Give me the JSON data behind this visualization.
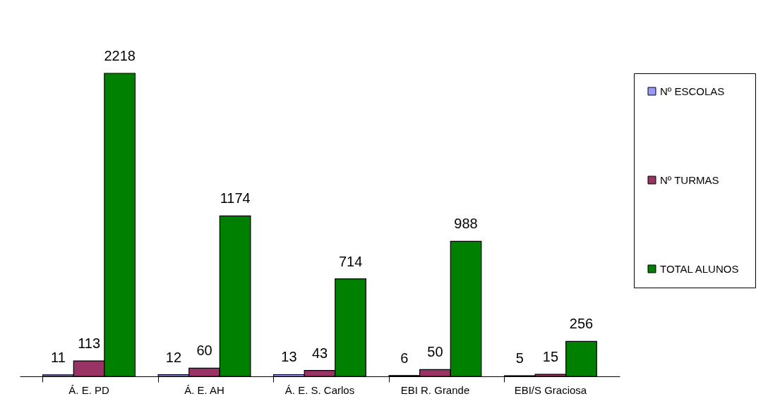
{
  "chart_data": {
    "type": "bar",
    "categories": [
      "Á. E. PD",
      "Á. E. AH",
      "Á. E. S. Carlos",
      "EBI R. Grande",
      "EBI/S Graciosa"
    ],
    "series": [
      {
        "name": "Nº  ESCOLAS",
        "color": "#9999ff",
        "values": [
          11,
          12,
          13,
          6,
          5
        ]
      },
      {
        "name": "Nº  TURMAS",
        "color": "#993366",
        "values": [
          113,
          60,
          43,
          50,
          15
        ]
      },
      {
        "name": "TOTAL  ALUNOS",
        "color": "#008000",
        "values": [
          2218,
          1174,
          714,
          988,
          256
        ]
      }
    ],
    "data_labels": true,
    "legend": "right",
    "grid": false
  }
}
